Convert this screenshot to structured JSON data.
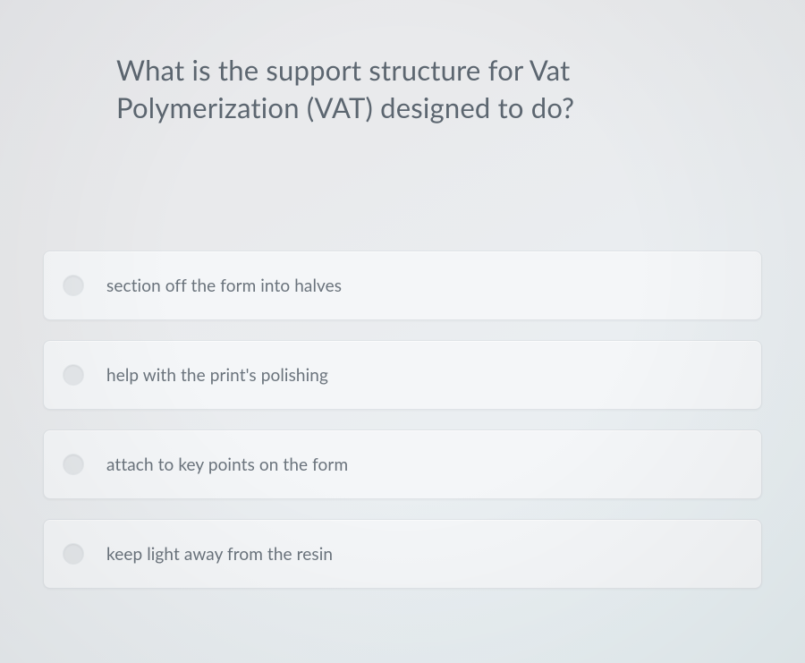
{
  "quiz": {
    "question": "What is the support structure for Vat Polymerization (VAT) designed to do?",
    "question_color": "#5c6670",
    "question_fontsize": 31,
    "options": [
      {
        "label": "section off the form into halves"
      },
      {
        "label": "help with the print's polishing"
      },
      {
        "label": "attach to key points on the form"
      },
      {
        "label": "keep light away from the resin"
      }
    ],
    "option_fontsize": 19,
    "option_text_color": "#6a737c",
    "option_bg": "#f4f6f8",
    "option_border_radius": 8,
    "radio_bg": "#e4e7ea",
    "page_bg_gradient": [
      "#e8e9ec",
      "#e6eff2"
    ]
  }
}
